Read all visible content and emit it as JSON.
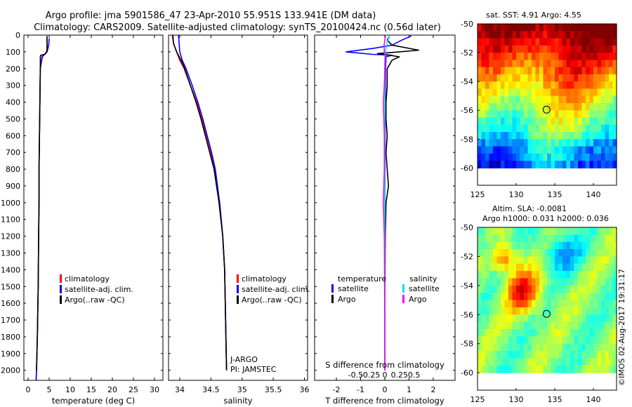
{
  "header": {
    "line1": "Argo profile: jma 5901586_47 23-Apr-2010 55.951S 133.941E (DM data)",
    "line2": "Climatology: CARS2009. Satellite-adjusted climatology: synTS_20100424.nc (0.56d later)"
  },
  "watermark": "©IMOS 02-Aug-2017 19:31:17",
  "colors": {
    "climatology": "#ff0000",
    "satellite": "#0000ff",
    "argo": "#000000",
    "sal_satellite": "#00e5e5",
    "sal_argo": "#ff00ff"
  },
  "chart_data": [
    {
      "type": "line",
      "id": "temperature",
      "xlabel": "temperature (deg C)",
      "ylabel": "",
      "xlim": [
        -1,
        32
      ],
      "ylim": [
        2060,
        0
      ],
      "xticks": [
        "0",
        "5",
        "10",
        "15",
        "20",
        "25",
        "30"
      ],
      "xtick_values": [
        0,
        5,
        10,
        15,
        20,
        25,
        30
      ],
      "yticks": [
        "0",
        "100",
        "200",
        "300",
        "400",
        "500",
        "600",
        "700",
        "800",
        "900",
        "1000",
        "1100",
        "1200",
        "1300",
        "1400",
        "1500",
        "1600",
        "1700",
        "1800",
        "1900",
        "2000"
      ],
      "ytick_values": [
        0,
        100,
        200,
        300,
        400,
        500,
        600,
        700,
        800,
        900,
        1000,
        1100,
        1200,
        1300,
        1400,
        1500,
        1600,
        1700,
        1800,
        1900,
        2000
      ],
      "legend": [
        "climatology",
        "satellite-adj. clim.",
        "Argo(..raw -QC)"
      ],
      "series": [
        {
          "name": "climatology",
          "color": "#ff0000",
          "depth": [
            20,
            60,
            100,
            130,
            200,
            400,
            600,
            800,
            1000,
            1200,
            1500,
            1800,
            2000,
            2060
          ],
          "values": [
            4.5,
            4.5,
            4.4,
            3.4,
            2.9,
            2.8,
            2.7,
            2.6,
            2.6,
            2.5,
            2.4,
            2.2,
            2.0,
            1.9
          ]
        },
        {
          "name": "satellite-adj. clim.",
          "color": "#0000ff",
          "depth": [
            20,
            60,
            100,
            130,
            200,
            400,
            600,
            800,
            1000,
            1200,
            1500,
            1800,
            2000,
            2060
          ],
          "values": [
            5.0,
            4.9,
            4.5,
            3.3,
            2.9,
            2.8,
            2.7,
            2.6,
            2.6,
            2.5,
            2.4,
            2.2,
            2.0,
            1.9
          ]
        },
        {
          "name": "Argo(..raw -QC)",
          "color": "#000000",
          "depth": [
            5,
            60,
            80,
            100,
            115,
            120,
            130,
            200,
            400,
            600,
            800,
            1000,
            1200,
            1500,
            1800,
            2000
          ],
          "values": [
            4.5,
            4.5,
            4.6,
            4.4,
            4.0,
            3.0,
            2.9,
            2.9,
            2.8,
            2.7,
            2.6,
            2.6,
            2.5,
            2.4,
            2.2,
            2.0
          ]
        }
      ]
    },
    {
      "type": "line",
      "id": "salinity",
      "xlabel": "salinity",
      "ylabel": "",
      "xlim": [
        33.82,
        36.05
      ],
      "ylim": [
        2060,
        0
      ],
      "xticks": [
        "34",
        "34.5",
        "35",
        "35.5",
        "36"
      ],
      "xtick_values": [
        34,
        34.5,
        35,
        35.5,
        36
      ],
      "legend": [
        "climatology",
        "satellite-adj. clim.",
        "Argo(..raw -QC)"
      ],
      "annotations": [
        "J-ARGO",
        "PI: JAMSTEC"
      ],
      "series": [
        {
          "name": "climatology",
          "color": "#ff0000",
          "depth": [
            0,
            50,
            100,
            150,
            200,
            300,
            400,
            500,
            600,
            700,
            800,
            1000,
            1200,
            1400,
            1600,
            1800,
            2000
          ],
          "values": [
            33.88,
            33.9,
            33.95,
            34.0,
            34.07,
            34.17,
            34.27,
            34.35,
            34.43,
            34.5,
            34.56,
            34.64,
            34.69,
            34.72,
            34.73,
            34.74,
            34.75
          ]
        },
        {
          "name": "satellite-adj. clim.",
          "color": "#0000ff",
          "depth": [
            0,
            50,
            100,
            150,
            200,
            300,
            400,
            500,
            600,
            700,
            800,
            1000,
            1200,
            1400,
            1600,
            1800,
            2000
          ],
          "values": [
            33.98,
            33.99,
            34.0,
            34.04,
            34.1,
            34.2,
            34.29,
            34.37,
            34.44,
            34.51,
            34.57,
            34.64,
            34.69,
            34.72,
            34.73,
            34.74,
            34.75
          ]
        },
        {
          "name": "Argo(..raw -QC)",
          "color": "#000000",
          "depth": [
            0,
            50,
            100,
            150,
            200,
            300,
            400,
            500,
            600,
            700,
            800,
            1000,
            1200,
            1400,
            1600,
            1800,
            2000
          ],
          "values": [
            33.89,
            33.9,
            33.95,
            34.02,
            34.08,
            34.17,
            34.26,
            34.34,
            34.41,
            34.48,
            34.55,
            34.63,
            34.69,
            34.72,
            34.73,
            34.74,
            34.75
          ]
        }
      ]
    },
    {
      "type": "line",
      "id": "difference",
      "xlabel": "T difference from climatology",
      "xlabel_top": "S difference from climatology",
      "xlim": [
        -2.9,
        2.9
      ],
      "ylim": [
        2060,
        0
      ],
      "xticks": [
        "-2",
        "-1",
        "0",
        "1",
        "2"
      ],
      "xtick_values": [
        -2,
        -1,
        0,
        1,
        2
      ],
      "xticks_sal": [
        "-0.5",
        "-0.25",
        "0",
        "0.25",
        "0.5"
      ],
      "xtick_sal_values": [
        -0.5,
        -0.25,
        0,
        0.25,
        0.5
      ],
      "legend_headings": [
        "temperature",
        "salinity"
      ],
      "legend": [
        "satellite",
        "Argo",
        "satellite",
        "Argo"
      ],
      "series": [
        {
          "name": "temperature satellite",
          "color": "#0000ff",
          "depth": [
            5,
            30,
            60,
            80,
            100,
            115,
            120,
            130,
            200,
            400,
            800,
            1200,
            1600,
            2000
          ],
          "values": [
            1.1,
            0.7,
            0.3,
            -0.5,
            -1.6,
            -0.5,
            0.3,
            0.05,
            0.03,
            0.02,
            0.01,
            0.0,
            0.0,
            0.0
          ]
        },
        {
          "name": "temperature Argo",
          "color": "#000000",
          "depth": [
            5,
            30,
            60,
            90,
            100,
            110,
            120,
            130,
            150,
            200,
            300,
            400,
            500,
            600,
            700,
            800,
            900,
            1000,
            1200,
            1600,
            2000
          ],
          "values": [
            0.2,
            0.1,
            0.3,
            1.4,
            0.6,
            -0.3,
            0.2,
            0.6,
            0.3,
            0.1,
            0.1,
            0.05,
            0.05,
            0.1,
            0.05,
            0.1,
            0.15,
            0.05,
            0.02,
            0.0,
            0.0
          ]
        },
        {
          "name": "salinity satellite",
          "color": "#00e5e5",
          "depth": [
            5,
            40,
            80,
            120,
            200,
            400,
            800,
            1200,
            1600,
            2000
          ],
          "values": [
            0.2,
            0.1,
            0.05,
            0.0,
            0.0,
            0.0,
            0.0,
            0.0,
            0.0,
            0.0
          ]
        },
        {
          "name": "salinity Argo",
          "color": "#ff00ff",
          "depth": [
            5,
            60,
            100,
            130,
            200,
            300,
            400,
            500,
            600,
            800,
            900,
            1000,
            1100,
            1200,
            1500,
            2000
          ],
          "values": [
            0.03,
            -0.03,
            -0.02,
            0.02,
            0.0,
            -0.02,
            -0.06,
            -0.04,
            -0.02,
            -0.02,
            -0.04,
            -0.06,
            -0.04,
            -0.02,
            -0.01,
            0.0
          ]
        }
      ]
    },
    {
      "type": "heatmap",
      "id": "sst_map",
      "title": "sat. SST: 4.91  Argo: 4.55",
      "xlim": [
        125,
        143
      ],
      "ylim": [
        -61.2,
        -50
      ],
      "xticks": [
        "125",
        "130",
        "135",
        "140"
      ],
      "xtick_values": [
        125,
        130,
        135,
        140
      ],
      "yticks": [
        "-50",
        "-52",
        "-54",
        "-56",
        "-58",
        "-60"
      ],
      "ytick_values": [
        -50,
        -52,
        -54,
        -56,
        -58,
        -60
      ],
      "data_lat_range": [
        -60,
        -50
      ],
      "marker": {
        "lon": 133.94,
        "lat": -55.95
      }
    },
    {
      "type": "heatmap",
      "id": "sla_map",
      "title": "Altim. SLA: -0.0081",
      "subtitle": "Argo h1000: 0.031 h2000: 0.036",
      "xlim": [
        125,
        143
      ],
      "ylim": [
        -61.2,
        -50
      ],
      "xticks": [
        "125",
        "130",
        "135",
        "140"
      ],
      "xtick_values": [
        125,
        130,
        135,
        140
      ],
      "yticks": [
        "-50",
        "-52",
        "-54",
        "-56",
        "-58",
        "-60"
      ],
      "ytick_values": [
        -50,
        -52,
        -54,
        -56,
        -58,
        -60
      ],
      "data_lat_range": [
        -60,
        -50
      ],
      "marker": {
        "lon": 133.94,
        "lat": -55.95
      }
    }
  ]
}
